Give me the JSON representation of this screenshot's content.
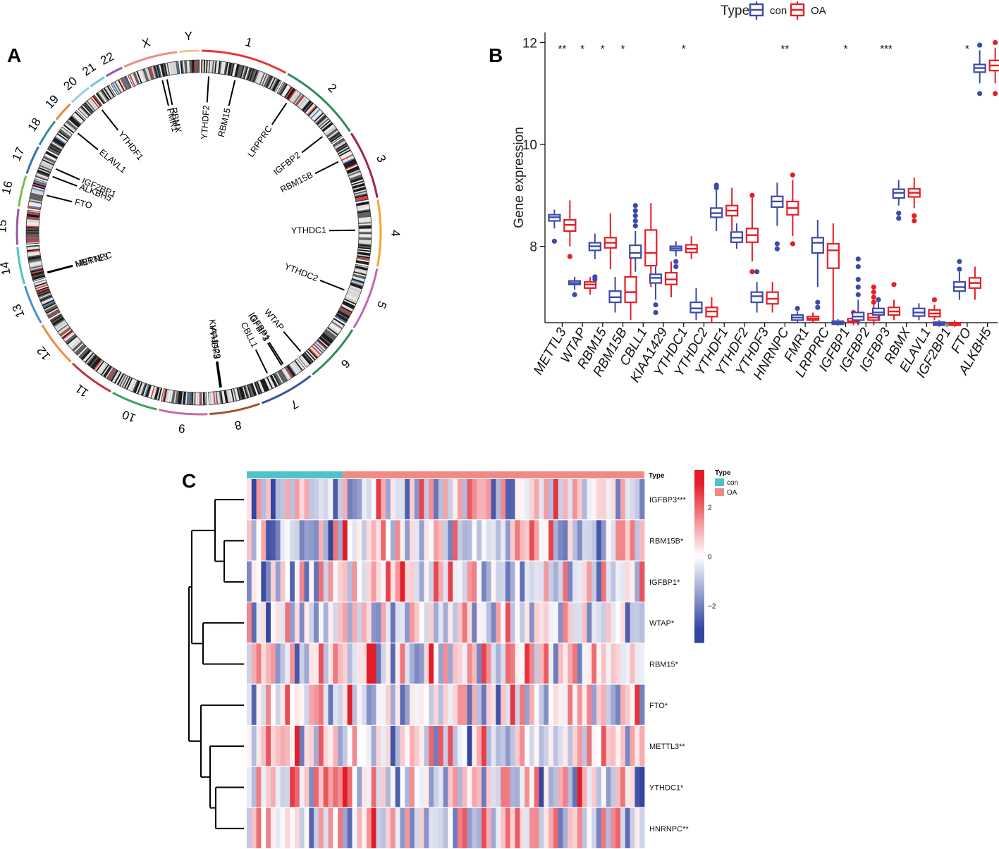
{
  "panels": {
    "a": "A",
    "b": "B",
    "c": "C"
  },
  "legend_top": {
    "title": "Type",
    "items": [
      "con",
      "OA"
    ]
  },
  "colors": {
    "con": "#3c4aa8",
    "OA": "#e51e25",
    "type_con": "#4ec3c8",
    "type_oa": "#f08a84"
  },
  "chart_data": [
    {
      "type": "circos",
      "title": "",
      "chromosomes": [
        "1",
        "2",
        "3",
        "4",
        "5",
        "6",
        "7",
        "8",
        "9",
        "10",
        "11",
        "12",
        "13",
        "14",
        "15",
        "16",
        "17",
        "18",
        "19",
        "20",
        "21",
        "22",
        "X",
        "Y"
      ],
      "chromosome_colors": [
        "#e8353a",
        "#2e8b57",
        "#a3224a",
        "#f2a72c",
        "#c06ab0",
        "#2e8b57",
        "#3953a4",
        "#a0522d",
        "#c86aa6",
        "#3aa35a",
        "#c5303e",
        "#f08a3c",
        "#4a8fd0",
        "#4ec3c8",
        "#9a55a4",
        "#7cbd4e",
        "#3b6eb4",
        "#2f8f8f",
        "#e8863a",
        "#8fcfe8",
        "#76c1d4",
        "#9a55a4",
        "#ea8e82",
        "#f2c48e"
      ],
      "genes": [
        {
          "name": "FMR1",
          "chr": "X"
        },
        {
          "name": "RBMX",
          "chr": "X"
        },
        {
          "name": "YTHDF2",
          "chr": "1"
        },
        {
          "name": "RBM15",
          "chr": "1"
        },
        {
          "name": "LRPPRC",
          "chr": "2"
        },
        {
          "name": "IGFBP2",
          "chr": "2"
        },
        {
          "name": "RBM15B",
          "chr": "3"
        },
        {
          "name": "YTHDC1",
          "chr": "4"
        },
        {
          "name": "YTHDC2",
          "chr": "5"
        },
        {
          "name": "WTAP",
          "chr": "6"
        },
        {
          "name": "IGFBP1",
          "chr": "7"
        },
        {
          "name": "IGFBP3",
          "chr": "7"
        },
        {
          "name": "CBLL1",
          "chr": "7"
        },
        {
          "name": "KIAA1429",
          "chr": "8"
        },
        {
          "name": "YTHDF3",
          "chr": "8"
        },
        {
          "name": "METTL3",
          "chr": "14"
        },
        {
          "name": "HNRNPC",
          "chr": "14"
        },
        {
          "name": "FTO",
          "chr": "16"
        },
        {
          "name": "IGF2BP1",
          "chr": "17"
        },
        {
          "name": "ALKBH5",
          "chr": "17"
        },
        {
          "name": "ELAVL1",
          "chr": "19"
        },
        {
          "name": "YTHDF1",
          "chr": "20"
        }
      ]
    },
    {
      "type": "box",
      "title": "",
      "xlabel": "",
      "ylabel": "Gene expression",
      "ylim": [
        6.5,
        12.2
      ],
      "yticks": [
        "8",
        "10",
        "12"
      ],
      "legend": {
        "title": "Type",
        "entries": [
          "con",
          "OA"
        ],
        "position": "top"
      },
      "categories": [
        "METTL3",
        "WTAP",
        "RBM15",
        "RBM15B",
        "CBLL1",
        "KIAA1429",
        "YTHDC1",
        "YTHDC2",
        "YTHDF1",
        "YTHDF2",
        "YTHDF3",
        "HNRNPC",
        "FMR1",
        "LRPPRC",
        "IGFBP1",
        "IGFBP2",
        "IGFBP3",
        "RBMX",
        "ELAVL1",
        "IGF2BP1",
        "FTO",
        "ALKBH5"
      ],
      "significance": [
        "**",
        "*",
        "*",
        "*",
        "",
        "",
        "*",
        "",
        "",
        "",
        "",
        "**",
        "",
        "",
        "*",
        "",
        "***",
        "",
        "",
        "",
        "*",
        ""
      ],
      "series": [
        {
          "name": "con",
          "boxes": [
            [
              8.35,
              8.5,
              8.57,
              8.62,
              8.72
            ],
            [
              7.15,
              7.25,
              7.28,
              7.32,
              7.4
            ],
            [
              7.75,
              7.92,
              8.0,
              8.07,
              8.25
            ],
            [
              6.7,
              6.9,
              7.0,
              7.12,
              7.4
            ],
            [
              7.5,
              7.77,
              7.87,
              8.02,
              8.3
            ],
            [
              6.95,
              7.28,
              7.38,
              7.45,
              7.6
            ],
            [
              7.8,
              7.92,
              7.96,
              8.0,
              8.1
            ],
            [
              6.55,
              6.7,
              6.78,
              6.9,
              7.18
            ],
            [
              8.3,
              8.57,
              8.65,
              8.75,
              9.1
            ],
            [
              7.95,
              8.08,
              8.17,
              8.28,
              8.45
            ],
            [
              6.7,
              6.9,
              7.02,
              7.1,
              7.3
            ],
            [
              8.4,
              8.77,
              8.88,
              8.98,
              9.25
            ],
            [
              6.5,
              6.55,
              6.6,
              6.65,
              6.72
            ],
            [
              7.2,
              7.87,
              8.07,
              8.17,
              8.52
            ],
            [
              6.44,
              6.47,
              6.5,
              6.53,
              6.57
            ],
            [
              6.45,
              6.55,
              6.62,
              6.7,
              6.95
            ],
            [
              6.55,
              6.65,
              6.7,
              6.78,
              6.9
            ],
            [
              8.8,
              8.95,
              9.05,
              9.12,
              9.3
            ],
            [
              6.55,
              6.63,
              6.7,
              6.78,
              6.88
            ],
            [
              6.42,
              6.45,
              6.48,
              6.51,
              6.55
            ],
            [
              6.95,
              7.12,
              7.2,
              7.3,
              7.5
            ],
            [
              11.2,
              11.42,
              11.5,
              11.57,
              11.85
            ]
          ]
        },
        {
          "name": "OA",
          "boxes": [
            [
              8.0,
              8.3,
              8.42,
              8.52,
              8.9
            ],
            [
              7.05,
              7.18,
              7.25,
              7.3,
              7.4
            ],
            [
              7.55,
              7.97,
              8.07,
              8.17,
              8.65
            ],
            [
              6.55,
              6.9,
              7.1,
              7.4,
              7.9
            ],
            [
              7.2,
              7.62,
              7.87,
              8.32,
              8.85
            ],
            [
              7.0,
              7.25,
              7.35,
              7.48,
              7.7
            ],
            [
              7.75,
              7.88,
              7.95,
              8.03,
              8.2
            ],
            [
              6.5,
              6.62,
              6.72,
              6.8,
              7.0
            ],
            [
              8.3,
              8.6,
              8.7,
              8.8,
              9.15
            ],
            [
              7.7,
              8.08,
              8.22,
              8.35,
              8.95
            ],
            [
              6.7,
              6.87,
              6.97,
              7.1,
              7.3
            ],
            [
              8.2,
              8.62,
              8.75,
              8.88,
              9.3
            ],
            [
              6.5,
              6.55,
              6.58,
              6.62,
              6.7
            ],
            [
              6.5,
              7.57,
              7.92,
              8.05,
              8.45
            ],
            [
              6.45,
              6.5,
              6.53,
              6.58,
              6.65
            ],
            [
              6.45,
              6.55,
              6.6,
              6.68,
              6.85
            ],
            [
              6.55,
              6.65,
              6.72,
              6.8,
              6.95
            ],
            [
              8.75,
              8.97,
              9.05,
              9.13,
              9.35
            ],
            [
              6.55,
              6.62,
              6.68,
              6.75,
              6.85
            ],
            [
              6.42,
              6.45,
              6.48,
              6.5,
              6.55
            ],
            [
              6.95,
              7.18,
              7.28,
              7.38,
              7.6
            ],
            [
              11.2,
              11.45,
              11.55,
              11.65,
              11.9
            ]
          ]
        }
      ],
      "outliers": {
        "con": [
          [
            8.1
          ],
          [
            7.05
          ],
          [
            7.35,
            7.4
          ],
          [],
          [
            8.4,
            8.5,
            8.6,
            8.7,
            8.8
          ],
          [
            6.7,
            6.85
          ],
          [
            7.6,
            7.7
          ],
          [],
          [
            9.15,
            9.2
          ],
          [],
          [
            7.5
          ],
          [
            7.95,
            8.05
          ],
          [
            6.78
          ],
          [
            6.8,
            6.9
          ],
          [],
          [
            7.05,
            7.2,
            7.35,
            7.6,
            7.75
          ],
          [
            6.95
          ],
          [
            8.55,
            8.65
          ],
          [],
          [],
          [
            7.55,
            7.7
          ],
          [
            11.0,
            11.95
          ]
        ],
        "OA": [
          [
            7.8
          ],
          [],
          [],
          [],
          [],
          [],
          [],
          [],
          [],
          [
            7.5,
            9.0
          ],
          [],
          [
            8.05,
            9.4
          ],
          [],
          [],
          [
            6.7
          ],
          [
            6.9,
            7.0,
            7.1,
            7.2
          ],
          [
            7.25
          ],
          [
            8.5,
            8.6
          ],
          [
            6.95
          ],
          [],
          [],
          [
            11.0,
            12.0
          ]
        ]
      }
    },
    {
      "type": "heatmap",
      "title": "",
      "rows": [
        "IGFBP3***",
        "RBM15B*",
        "IGFBP1*",
        "WTAP*",
        "RBM15*",
        "FTO*",
        "METTL3**",
        "YTHDC1*",
        "HNRNPC**"
      ],
      "annotation": {
        "label": "Type",
        "groups": [
          {
            "name": "con",
            "count": 20
          },
          {
            "name": "OA",
            "count": 63
          }
        ]
      },
      "color_scale": {
        "ticks": [
          "2",
          "0",
          "−2"
        ],
        "range": [
          -3.5,
          3.5
        ]
      },
      "legend": {
        "title": "Type",
        "entries": [
          "con",
          "OA"
        ]
      },
      "note": "cell values are z-scored expression per gene; individual cell values estimated as a random pattern"
    }
  ]
}
